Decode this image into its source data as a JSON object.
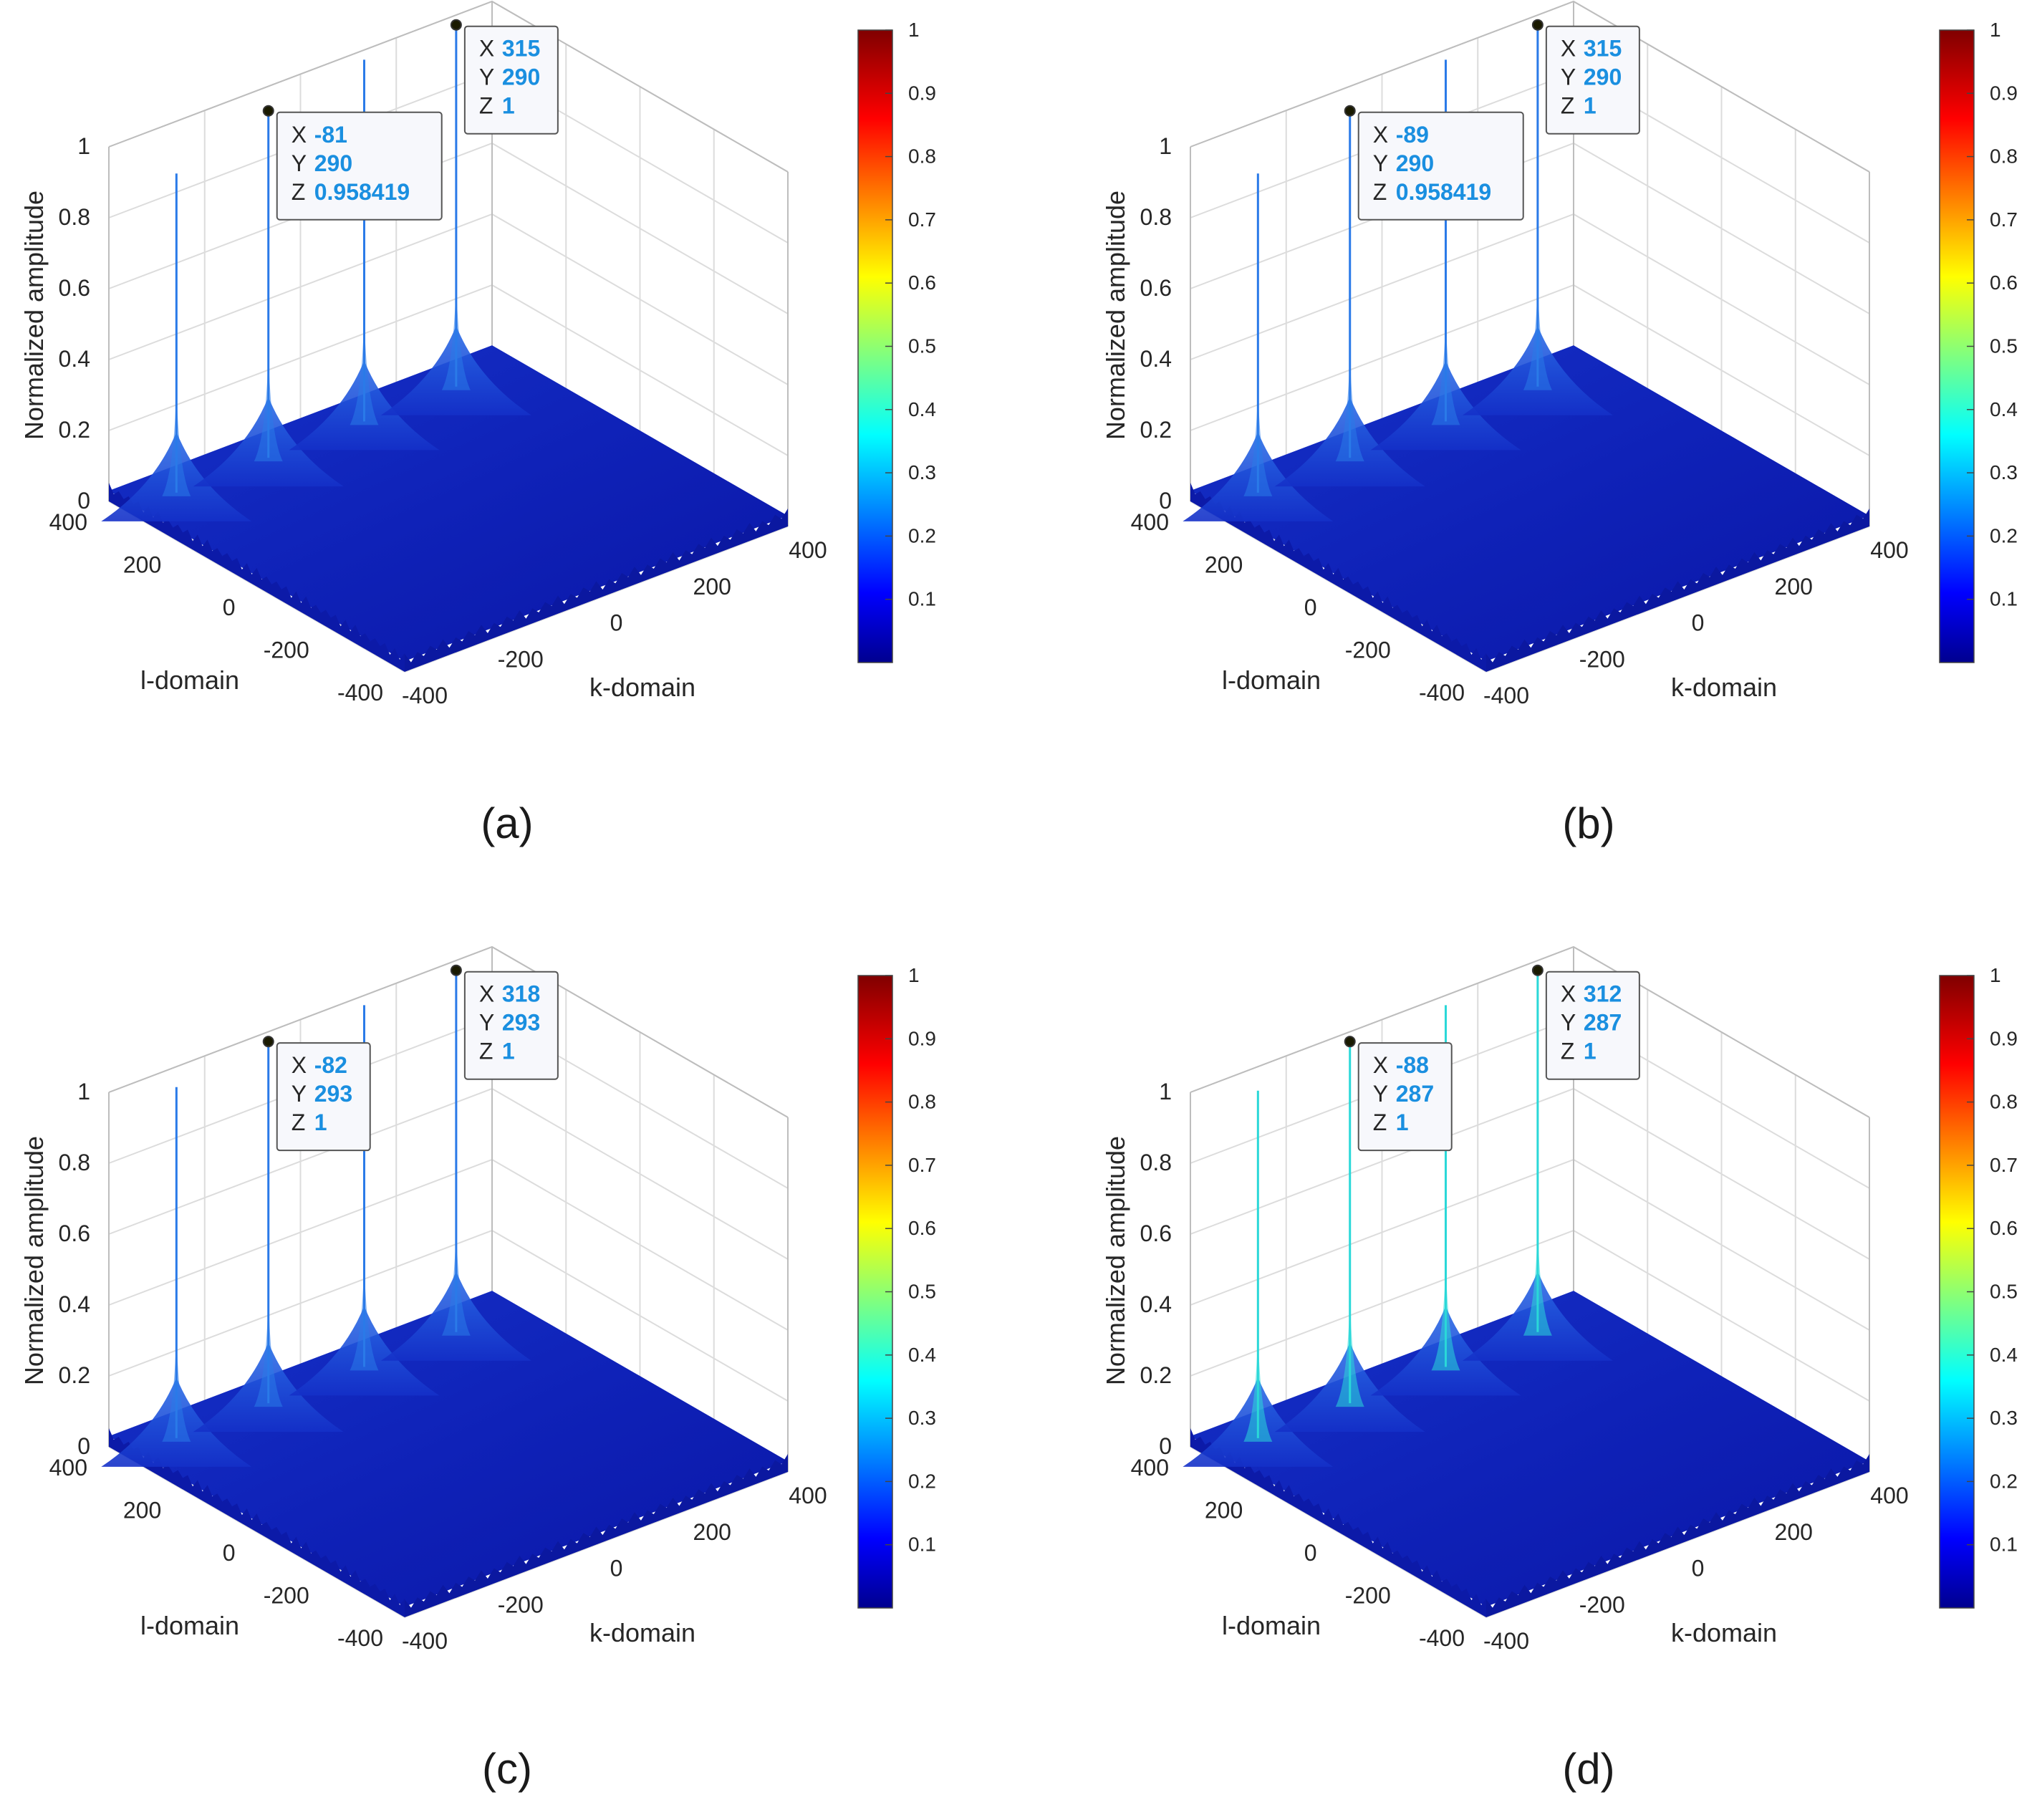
{
  "figure": "Four 3D surface plots of normalized amplitude versus l-domain and k-domain",
  "colors": {
    "surface_dark": "#0a14b4",
    "surface_mid": "#1a3ad8",
    "peak_line": "#2a7ae8",
    "peak_line_cyan": "#2ad8d8",
    "grid": "#dcdcdc",
    "axis": "#333333",
    "label_text": "#262626",
    "datatip_value": "#1a8fe0",
    "datatip_bg": "#f7f8fc",
    "datatip_border": "#555555"
  },
  "colormap": "jet",
  "chart_data": [
    {
      "panel_label": "(a)",
      "type": "surface",
      "zlabel": "Normalized amplitude",
      "ylabel": "l-domain",
      "xlabel": "k-domain",
      "zlim": [
        0,
        1
      ],
      "xlim": [
        -400,
        400
      ],
      "ylim": [
        -400,
        400
      ],
      "z_ticks": [
        "0",
        "0.2",
        "0.4",
        "0.6",
        "0.8",
        "1"
      ],
      "l_ticks": [
        "400",
        "200",
        "0",
        "-200",
        "-400"
      ],
      "k_ticks": [
        "-400",
        "-200",
        "0",
        "200",
        "400"
      ],
      "colorbar_ticks": [
        "0.1",
        "0.2",
        "0.3",
        "0.4",
        "0.5",
        "0.6",
        "0.7",
        "0.8",
        "0.9",
        "1"
      ],
      "peaks": [
        {
          "height": 0.88
        },
        {
          "height": 0.958419
        },
        {
          "height": 1.0
        },
        {
          "height": 1.0
        }
      ],
      "datatips": [
        {
          "rows": [
            {
              "label": "X",
              "value": "-81"
            },
            {
              "label": "Y",
              "value": "290"
            },
            {
              "label": "Z",
              "value": "0.958419"
            }
          ]
        },
        {
          "rows": [
            {
              "label": "X",
              "value": "315"
            },
            {
              "label": "Y",
              "value": "290"
            },
            {
              "label": "Z",
              "value": "1"
            }
          ]
        }
      ]
    },
    {
      "panel_label": "(b)",
      "type": "surface",
      "zlabel": "Normalized amplitude",
      "ylabel": "l-domain",
      "xlabel": "k-domain",
      "zlim": [
        0,
        1
      ],
      "xlim": [
        -400,
        400
      ],
      "ylim": [
        -400,
        400
      ],
      "z_ticks": [
        "0",
        "0.2",
        "0.4",
        "0.6",
        "0.8",
        "1"
      ],
      "l_ticks": [
        "400",
        "200",
        "0",
        "-200",
        "-400"
      ],
      "k_ticks": [
        "-400",
        "-200",
        "0",
        "200",
        "400"
      ],
      "colorbar_ticks": [
        "0.1",
        "0.2",
        "0.3",
        "0.4",
        "0.5",
        "0.6",
        "0.7",
        "0.8",
        "0.9",
        "1"
      ],
      "peaks": [
        {
          "height": 0.88
        },
        {
          "height": 0.958419
        },
        {
          "height": 1.0
        },
        {
          "height": 1.0
        }
      ],
      "datatips": [
        {
          "rows": [
            {
              "label": "X",
              "value": "-89"
            },
            {
              "label": "Y",
              "value": "290"
            },
            {
              "label": "Z",
              "value": "0.958419"
            }
          ]
        },
        {
          "rows": [
            {
              "label": "X",
              "value": "315"
            },
            {
              "label": "Y",
              "value": "290"
            },
            {
              "label": "Z",
              "value": "1"
            }
          ]
        }
      ]
    },
    {
      "panel_label": "(c)",
      "type": "surface",
      "zlabel": "Normalized amplitude",
      "ylabel": "l-domain",
      "xlabel": "k-domain",
      "zlim": [
        0,
        1
      ],
      "xlim": [
        -400,
        400
      ],
      "ylim": [
        -400,
        400
      ],
      "z_ticks": [
        "0",
        "0.2",
        "0.4",
        "0.6",
        "0.8",
        "1"
      ],
      "l_ticks": [
        "400",
        "200",
        "0",
        "-200",
        "-400"
      ],
      "k_ticks": [
        "-400",
        "-200",
        "0",
        "200",
        "400"
      ],
      "colorbar_ticks": [
        "0.1",
        "0.2",
        "0.3",
        "0.4",
        "0.5",
        "0.6",
        "0.7",
        "0.8",
        "0.9",
        "1"
      ],
      "peaks": [
        {
          "height": 0.97
        },
        {
          "height": 1.0
        },
        {
          "height": 1.0
        },
        {
          "height": 1.0
        }
      ],
      "datatips": [
        {
          "rows": [
            {
              "label": "X",
              "value": "-82"
            },
            {
              "label": "Y",
              "value": "293"
            },
            {
              "label": "Z",
              "value": "1"
            }
          ]
        },
        {
          "rows": [
            {
              "label": "X",
              "value": "318"
            },
            {
              "label": "Y",
              "value": "293"
            },
            {
              "label": "Z",
              "value": "1"
            }
          ]
        }
      ]
    },
    {
      "panel_label": "(d)",
      "type": "surface",
      "zlabel": "Normalized amplitude",
      "ylabel": "l-domain",
      "xlabel": "k-domain",
      "zlim": [
        0,
        1
      ],
      "xlim": [
        -400,
        400
      ],
      "ylim": [
        -400,
        400
      ],
      "z_ticks": [
        "0",
        "0.2",
        "0.4",
        "0.6",
        "0.8",
        "1"
      ],
      "l_ticks": [
        "400",
        "200",
        "0",
        "-200",
        "-400"
      ],
      "k_ticks": [
        "-400",
        "-200",
        "0",
        "200",
        "400"
      ],
      "colorbar_ticks": [
        "0.1",
        "0.2",
        "0.3",
        "0.4",
        "0.5",
        "0.6",
        "0.7",
        "0.8",
        "0.9",
        "1"
      ],
      "peaks": [
        {
          "height": 0.96
        },
        {
          "height": 1.0
        },
        {
          "height": 1.0
        },
        {
          "height": 1.0
        }
      ],
      "datatips": [
        {
          "rows": [
            {
              "label": "X",
              "value": "-88"
            },
            {
              "label": "Y",
              "value": "287"
            },
            {
              "label": "Z",
              "value": "1"
            }
          ]
        },
        {
          "rows": [
            {
              "label": "X",
              "value": "312"
            },
            {
              "label": "Y",
              "value": "287"
            },
            {
              "label": "Z",
              "value": "1"
            }
          ]
        }
      ]
    }
  ]
}
